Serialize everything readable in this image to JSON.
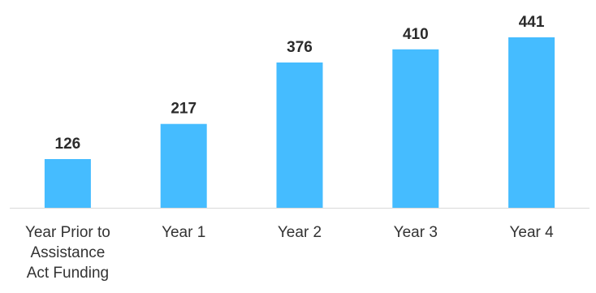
{
  "chart_data": {
    "type": "bar",
    "categories": [
      [
        "Year Prior to",
        "Assistance",
        "Act Funding"
      ],
      [
        "Year 1"
      ],
      [
        "Year 2"
      ],
      [
        "Year 3"
      ],
      [
        "Year 4"
      ]
    ],
    "values": [
      126,
      217,
      376,
      410,
      441
    ],
    "data_labels": [
      "126",
      "217",
      "376",
      "410",
      "441"
    ],
    "title": "",
    "xlabel": "",
    "ylabel": "",
    "ylim": [
      0,
      441
    ],
    "grid": false,
    "legend": "none",
    "colors": {
      "bar": "#45BCFF",
      "axis": "#D9D9D9",
      "value_label": "#2B2B2B",
      "category_label": "#333333"
    }
  }
}
